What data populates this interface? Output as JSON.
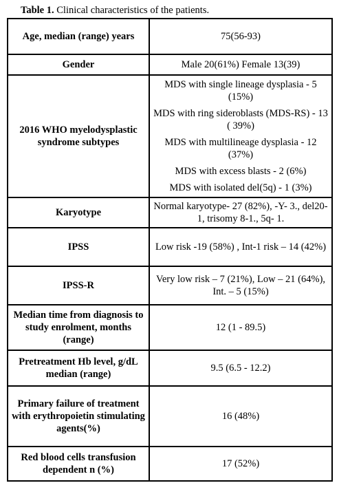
{
  "caption": {
    "label": "Table 1.",
    "text": " Clinical characteristics of the patients."
  },
  "rows": [
    {
      "label": "Age, median (range) years",
      "value": "75(56-93)"
    },
    {
      "label": "Gender",
      "value": "Male 20(61%) Female 13(39)"
    },
    {
      "label": "2016 WHO myelodysplastic syndrome subtypes",
      "values": [
        "MDS with single lineage dysplasia - 5 (15%)",
        "MDS with ring sideroblasts (MDS-RS) - 13 ( 39%)",
        "MDS with multilineage dysplasia - 12 (37%)",
        "MDS with excess blasts - 2 (6%)",
        "MDS with isolated del(5q) - 1 (3%)"
      ]
    },
    {
      "label": "Karyotype",
      "value": "Normal karyotype- 27 (82%), -Y- 3., del20-1, trisomy 8-1., 5q- 1."
    },
    {
      "label": "IPSS",
      "value": "Low  risk -19 (58%) , Int-1 risk – 14 (42%)"
    },
    {
      "label": "IPSS-R",
      "value": "Very low risk – 7 (21%), Low – 21 (64%), Int. – 5 (15%)"
    },
    {
      "label": "Median time from diagnosis to study enrolment, months (range)",
      "value": "12 (1 - 89.5)"
    },
    {
      "label": "Pretreatment Hb level, g/dL median (range)",
      "value": "9.5 (6.5 - 12.2)"
    },
    {
      "label": "Primary failure of treatment with erythropoietin stimulating agents(%)",
      "value": "16 (48%)"
    },
    {
      "label": "Red blood cells transfusion dependent n (%)",
      "value": "17 (52%)"
    }
  ]
}
